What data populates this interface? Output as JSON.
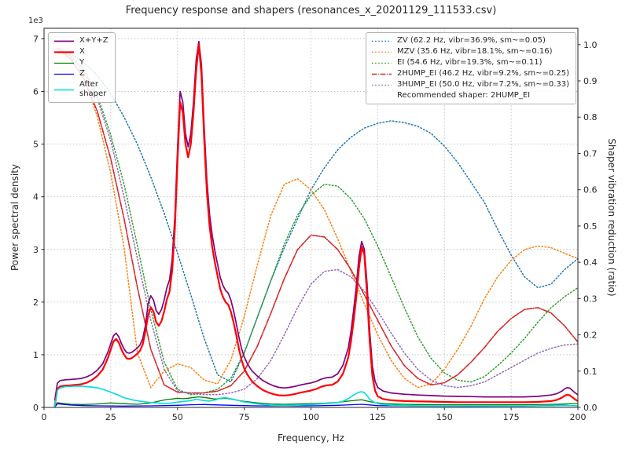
{
  "chart_data": {
    "type": "line",
    "title": "Frequency response and shapers (resonances_x_20201129_111533.csv)",
    "xlabel": "Frequency, Hz",
    "ylabel_left": "Power spectral density",
    "ylabel_right": "Shaper vibration reduction (ratio)",
    "y_offset_label": "1e3",
    "grid": true,
    "xlim": [
      0,
      200
    ],
    "ylim_left": [
      0,
      7200
    ],
    "ylim_right": [
      0,
      1.045
    ],
    "xticks": [
      0,
      25,
      50,
      75,
      100,
      125,
      150,
      175,
      200
    ],
    "xtick_labels": [
      "0",
      "25",
      "50",
      "75",
      "100",
      "125",
      "150",
      "175",
      "200"
    ],
    "ytick_left_values": [
      0,
      1000,
      2000,
      3000,
      4000,
      5000,
      6000,
      7000
    ],
    "ytick_left_labels": [
      "0",
      "1",
      "2",
      "3",
      "4",
      "5",
      "6",
      "7"
    ],
    "ytick_right_values": [
      0,
      0.1,
      0.2,
      0.3,
      0.4,
      0.5,
      0.6,
      0.7,
      0.8,
      0.9,
      1.0
    ],
    "ytick_right_labels": [
      "0.0",
      "0.1",
      "0.2",
      "0.3",
      "0.4",
      "0.5",
      "0.6",
      "0.7",
      "0.8",
      "0.9",
      "1.0"
    ],
    "recommended": "Recommended shaper: 2HUMP_EI",
    "psd_x": [
      4,
      5,
      6,
      8,
      10,
      12,
      14,
      16,
      18,
      20,
      22,
      24,
      25,
      26,
      27,
      28,
      29,
      30,
      31,
      32,
      33,
      34,
      35,
      36,
      37,
      38,
      39,
      40,
      41,
      42,
      43,
      44,
      45,
      46,
      47,
      48,
      49,
      50,
      51,
      52,
      53,
      54,
      55,
      56,
      57,
      58,
      59,
      60,
      61,
      62,
      63,
      64,
      65,
      66,
      67,
      68,
      69,
      70,
      71,
      72,
      73,
      74,
      75,
      76,
      77,
      78,
      80,
      82,
      84,
      86,
      88,
      90,
      92,
      94,
      96,
      98,
      100,
      102,
      104,
      106,
      108,
      110,
      112,
      114,
      115,
      116,
      117,
      118,
      119,
      120,
      121,
      122,
      123,
      124,
      125,
      127,
      130,
      135,
      140,
      145,
      150,
      155,
      160,
      165,
      170,
      175,
      180,
      185,
      190,
      192,
      194,
      195,
      196,
      197,
      198,
      199,
      200
    ],
    "psd_series": [
      {
        "name": "xyz",
        "label": "X+Y+Z",
        "color": "#800080",
        "dash": "",
        "width": 1.7,
        "axis": "left",
        "values": [
          130,
          460,
          510,
          525,
          530,
          540,
          550,
          580,
          630,
          710,
          830,
          1060,
          1210,
          1360,
          1410,
          1340,
          1210,
          1110,
          1040,
          1030,
          1050,
          1090,
          1130,
          1190,
          1310,
          1560,
          1970,
          2120,
          2040,
          1840,
          1770,
          1860,
          2040,
          2270,
          2420,
          2820,
          3620,
          4920,
          6000,
          5800,
          5200,
          4950,
          5200,
          5800,
          6600,
          6950,
          6500,
          5320,
          4320,
          3670,
          3270,
          2970,
          2720,
          2470,
          2320,
          2220,
          2170,
          2040,
          1840,
          1600,
          1340,
          1120,
          960,
          850,
          760,
          690,
          590,
          510,
          455,
          410,
          380,
          370,
          380,
          400,
          425,
          445,
          465,
          495,
          540,
          565,
          575,
          640,
          800,
          1130,
          1440,
          1850,
          2310,
          2870,
          3150,
          3000,
          2360,
          1450,
          790,
          500,
          380,
          310,
          275,
          250,
          235,
          225,
          215,
          210,
          205,
          200,
          200,
          200,
          200,
          210,
          235,
          260,
          310,
          350,
          375,
          365,
          320,
          275,
          240
        ]
      },
      {
        "name": "x",
        "label": "X",
        "color": "#ff0000",
        "dash": "",
        "width": 2.2,
        "axis": "left",
        "values": [
          20,
          350,
          400,
          415,
          420,
          430,
          440,
          470,
          520,
          600,
          720,
          950,
          1100,
          1250,
          1300,
          1230,
          1100,
          1000,
          930,
          920,
          940,
          980,
          1020,
          1080,
          1200,
          1450,
          1750,
          1900,
          1820,
          1620,
          1550,
          1640,
          1820,
          2050,
          2200,
          2600,
          3400,
          4700,
          5800,
          5600,
          5000,
          4750,
          5000,
          5600,
          6400,
          6900,
          6300,
          5100,
          4100,
          3450,
          3050,
          2750,
          2500,
          2250,
          2100,
          2000,
          1950,
          1820,
          1620,
          1380,
          1120,
          900,
          740,
          640,
          560,
          490,
          400,
          330,
          285,
          250,
          230,
          225,
          235,
          255,
          280,
          300,
          320,
          350,
          395,
          420,
          430,
          490,
          640,
          950,
          1250,
          1650,
          2100,
          2650,
          3050,
          2900,
          2150,
          1250,
          600,
          320,
          210,
          160,
          135,
          120,
          115,
          110,
          105,
          100,
          100,
          100,
          100,
          100,
          100,
          105,
          120,
          140,
          185,
          220,
          240,
          230,
          190,
          150,
          120
        ]
      },
      {
        "name": "y",
        "label": "Y",
        "color": "#008000",
        "dash": "",
        "width": 1.3,
        "axis": "left",
        "x": [
          4,
          5,
          8,
          10,
          15,
          20,
          25,
          30,
          35,
          40,
          44,
          46,
          48,
          50,
          52,
          54,
          56,
          58,
          60,
          62,
          64,
          66,
          68,
          70,
          72,
          75,
          80,
          85,
          90,
          95,
          100,
          105,
          110,
          113,
          115,
          117,
          119,
          121,
          124,
          128,
          132,
          136,
          140,
          150,
          160,
          170,
          180,
          190,
          195,
          200
        ],
        "values": [
          10,
          90,
          70,
          60,
          55,
          65,
          85,
          70,
          60,
          85,
          130,
          150,
          160,
          175,
          165,
          175,
          190,
          200,
          190,
          175,
          160,
          165,
          175,
          160,
          140,
          115,
          85,
          65,
          60,
          65,
          70,
          80,
          95,
          115,
          125,
          135,
          145,
          120,
          90,
          70,
          62,
          58,
          55,
          52,
          50,
          50,
          52,
          58,
          65,
          75
        ]
      },
      {
        "name": "z",
        "label": "Z",
        "color": "#0000ff",
        "dash": "",
        "width": 1.3,
        "axis": "left",
        "x": [
          4,
          5,
          10,
          15,
          20,
          30,
          40,
          50,
          55,
          60,
          70,
          80,
          90,
          100,
          110,
          115,
          119,
          125,
          140,
          160,
          180,
          195,
          200
        ],
        "values": [
          5,
          70,
          45,
          35,
          30,
          25,
          30,
          40,
          50,
          55,
          40,
          30,
          28,
          30,
          40,
          50,
          60,
          35,
          25,
          22,
          25,
          40,
          30
        ]
      },
      {
        "name": "after-shaper",
        "label": "After\nshaper",
        "color": "#00dcdc",
        "dash": "",
        "width": 1.6,
        "axis": "left",
        "x": [
          4,
          5,
          6,
          8,
          10,
          12,
          15,
          18,
          20,
          22,
          25,
          28,
          30,
          33,
          35,
          38,
          40,
          43,
          45,
          48,
          50,
          53,
          55,
          57,
          60,
          62,
          64,
          66,
          68,
          70,
          73,
          75,
          80,
          85,
          90,
          95,
          100,
          104,
          108,
          110,
          112,
          114,
          116,
          118,
          119,
          120,
          121,
          122,
          124,
          126,
          130,
          140,
          150,
          160,
          170,
          180,
          190,
          195,
          200
        ],
        "values": [
          10,
          330,
          370,
          395,
          400,
          405,
          400,
          385,
          370,
          345,
          290,
          230,
          185,
          145,
          125,
          105,
          92,
          80,
          74,
          85,
          100,
          118,
          130,
          155,
          130,
          120,
          140,
          175,
          185,
          165,
          130,
          105,
          65,
          42,
          36,
          42,
          52,
          68,
          82,
          92,
          118,
          168,
          235,
          288,
          298,
          282,
          225,
          152,
          88,
          62,
          42,
          32,
          30,
          30,
          30,
          30,
          32,
          36,
          30
        ]
      }
    ],
    "shaper_x": [
      5,
      10,
      15,
      20,
      25,
      30,
      35,
      40,
      45,
      50,
      55,
      60,
      65,
      70,
      75,
      80,
      85,
      90,
      95,
      100,
      105,
      110,
      115,
      120,
      125,
      130,
      135,
      140,
      145,
      150,
      155,
      160,
      165,
      170,
      175,
      180,
      185,
      190,
      195,
      200
    ],
    "shaper_series": [
      {
        "name": "zv",
        "label": "ZV (62.2 Hz, vibr=36.9%, sm~=0.05)",
        "color": "#1f77b4",
        "dash": "1.5 2.6",
        "width": 1.5,
        "axis": "right",
        "values": [
          0.99,
          0.975,
          0.95,
          0.915,
          0.865,
          0.8,
          0.725,
          0.635,
          0.535,
          0.425,
          0.31,
          0.19,
          0.09,
          0.07,
          0.15,
          0.25,
          0.35,
          0.44,
          0.52,
          0.6,
          0.66,
          0.71,
          0.745,
          0.77,
          0.783,
          0.79,
          0.785,
          0.775,
          0.755,
          0.72,
          0.675,
          0.62,
          0.565,
          0.49,
          0.42,
          0.36,
          0.33,
          0.34,
          0.38,
          0.41
        ]
      },
      {
        "name": "mzv",
        "label": "MZV (35.6 Hz, vibr=18.1%, sm~=0.16)",
        "color": "#ff7f0e",
        "dash": "1.5 2.6",
        "width": 1.5,
        "axis": "right",
        "values": [
          0.99,
          0.96,
          0.91,
          0.8,
          0.645,
          0.44,
          0.15,
          0.055,
          0.1,
          0.12,
          0.11,
          0.075,
          0.065,
          0.13,
          0.25,
          0.395,
          0.53,
          0.615,
          0.63,
          0.6,
          0.545,
          0.465,
          0.375,
          0.285,
          0.2,
          0.13,
          0.08,
          0.055,
          0.065,
          0.105,
          0.16,
          0.225,
          0.3,
          0.36,
          0.405,
          0.435,
          0.445,
          0.44,
          0.425,
          0.41
        ]
      },
      {
        "name": "ei",
        "label": "EI (54.6 Hz, vibr=19.3%, sm~=0.11)",
        "color": "#2ca02c",
        "dash": "1.5 2.6",
        "width": 1.5,
        "axis": "right",
        "values": [
          0.99,
          0.97,
          0.93,
          0.86,
          0.75,
          0.615,
          0.445,
          0.27,
          0.125,
          0.05,
          0.035,
          0.04,
          0.05,
          0.08,
          0.15,
          0.25,
          0.35,
          0.45,
          0.53,
          0.585,
          0.615,
          0.61,
          0.575,
          0.52,
          0.445,
          0.36,
          0.275,
          0.195,
          0.135,
          0.095,
          0.075,
          0.07,
          0.085,
          0.115,
          0.15,
          0.19,
          0.235,
          0.275,
          0.305,
          0.33
        ]
      },
      {
        "name": "2hump-ei",
        "label": "2HUMP_EI (46.2 Hz, vibr=9.2%, sm~=0.25)",
        "color": "#d62728",
        "dash": "6.5 1.6 1.1 1.6",
        "width": 1.6,
        "axis": "right",
        "values": [
          0.99,
          0.96,
          0.905,
          0.815,
          0.685,
          0.52,
          0.33,
          0.16,
          0.062,
          0.042,
          0.04,
          0.04,
          0.045,
          0.06,
          0.1,
          0.17,
          0.26,
          0.355,
          0.435,
          0.475,
          0.47,
          0.435,
          0.38,
          0.31,
          0.24,
          0.17,
          0.115,
          0.08,
          0.062,
          0.068,
          0.09,
          0.125,
          0.165,
          0.21,
          0.245,
          0.27,
          0.275,
          0.26,
          0.225,
          0.18
        ]
      },
      {
        "name": "3hump-ei",
        "label": "3HUMP_EI (50.0 Hz, vibr=7.2%, sm~=0.33)",
        "color": "#9467bd",
        "dash": "1.5 2.6",
        "width": 1.5,
        "axis": "right",
        "values": [
          0.99,
          0.965,
          0.925,
          0.85,
          0.735,
          0.58,
          0.41,
          0.24,
          0.105,
          0.045,
          0.038,
          0.035,
          0.035,
          0.04,
          0.05,
          0.08,
          0.13,
          0.2,
          0.275,
          0.34,
          0.375,
          0.38,
          0.36,
          0.32,
          0.265,
          0.205,
          0.15,
          0.105,
          0.075,
          0.06,
          0.055,
          0.06,
          0.07,
          0.09,
          0.11,
          0.13,
          0.15,
          0.163,
          0.172,
          0.175
        ]
      }
    ]
  }
}
